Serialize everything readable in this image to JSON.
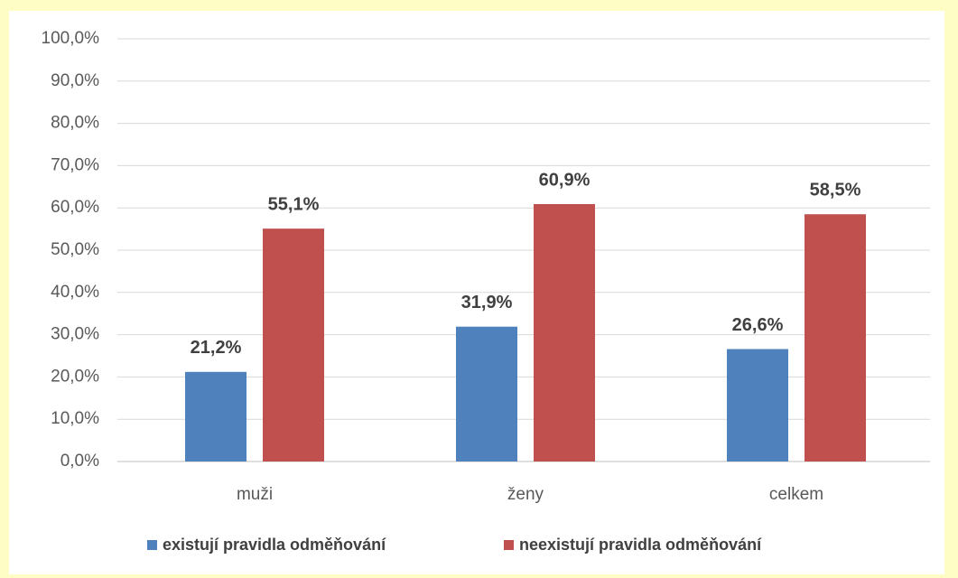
{
  "chart_data": {
    "type": "bar",
    "categories": [
      "muži",
      "ženy",
      "celkem"
    ],
    "series": [
      {
        "name": "existují pravidla odměňování",
        "color": "#4f81bd",
        "values": [
          21.2,
          31.9,
          26.6
        ],
        "value_labels": [
          "21,2%",
          "31,9%",
          "26,6%"
        ]
      },
      {
        "name": "neexistují pravidla odměňování",
        "color": "#c0504d",
        "values": [
          55.1,
          60.9,
          58.5
        ],
        "value_labels": [
          "55,1%",
          "60,9%",
          "58,5%"
        ]
      }
    ],
    "ylim": [
      0,
      100
    ],
    "yticks": [
      {
        "value": 0,
        "label": "0,0%"
      },
      {
        "value": 10,
        "label": "10,0%"
      },
      {
        "value": 20,
        "label": "20,0%"
      },
      {
        "value": 30,
        "label": "30,0%"
      },
      {
        "value": 40,
        "label": "40,0%"
      },
      {
        "value": 50,
        "label": "50,0%"
      },
      {
        "value": 60,
        "label": "60,0%"
      },
      {
        "value": 70,
        "label": "70,0%"
      },
      {
        "value": 80,
        "label": "80,0%"
      },
      {
        "value": 90,
        "label": "90,0%"
      },
      {
        "value": 100,
        "label": "100,0%"
      }
    ],
    "grid": true,
    "legend": "bottom"
  }
}
